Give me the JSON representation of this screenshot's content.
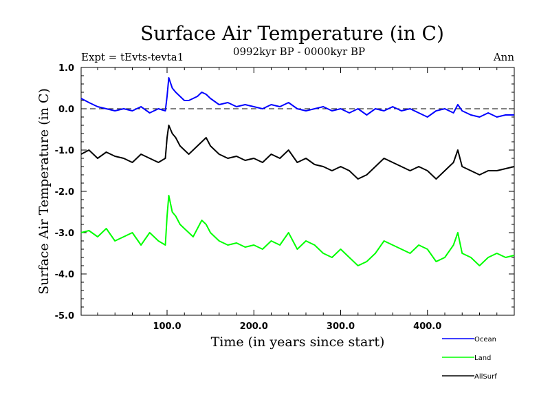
{
  "chart_data": {
    "type": "line",
    "title": "Surface Air Temperature (in C)",
    "subtitle_left": "Expt = tEvts-tevta1",
    "subtitle_center": "0992kyr BP - 0000kyr BP",
    "subtitle_right": "Ann",
    "xlabel": "Time (in years since start)",
    "ylabel": "Surface Air Temperature (in C)",
    "xlim": [
      1,
      500
    ],
    "ylim": [
      -5.0,
      1.0
    ],
    "xticks": [
      100,
      200,
      300,
      400
    ],
    "xtick_labels": [
      "100.0",
      "200.0",
      "300.0",
      "400.0"
    ],
    "yticks": [
      1.0,
      0.0,
      -1.0,
      -2.0,
      -3.0,
      -4.0,
      -5.0
    ],
    "ytick_labels": [
      "1.0",
      "0.0",
      "-1.0",
      "-2.0",
      "-3.0",
      "-4.0",
      "-5.0"
    ],
    "reference_line": 0.0,
    "legend_position": "bottom-right, outside plot",
    "series": [
      {
        "name": "Ocean",
        "color": "#0000ff",
        "values": [
          [
            1,
            0.25
          ],
          [
            10,
            0.15
          ],
          [
            20,
            0.05
          ],
          [
            30,
            0.0
          ],
          [
            40,
            -0.05
          ],
          [
            50,
            0.0
          ],
          [
            60,
            -0.05
          ],
          [
            70,
            0.05
          ],
          [
            80,
            -0.1
          ],
          [
            90,
            0.0
          ],
          [
            98,
            -0.05
          ],
          [
            100,
            0.3
          ],
          [
            102,
            0.75
          ],
          [
            106,
            0.5
          ],
          [
            110,
            0.4
          ],
          [
            115,
            0.3
          ],
          [
            120,
            0.2
          ],
          [
            125,
            0.2
          ],
          [
            130,
            0.25
          ],
          [
            135,
            0.3
          ],
          [
            140,
            0.4
          ],
          [
            145,
            0.35
          ],
          [
            150,
            0.25
          ],
          [
            160,
            0.1
          ],
          [
            170,
            0.15
          ],
          [
            180,
            0.05
          ],
          [
            190,
            0.1
          ],
          [
            200,
            0.05
          ],
          [
            210,
            0.0
          ],
          [
            220,
            0.1
          ],
          [
            230,
            0.05
          ],
          [
            240,
            0.15
          ],
          [
            250,
            0.0
          ],
          [
            260,
            -0.05
          ],
          [
            270,
            0.0
          ],
          [
            280,
            0.05
          ],
          [
            290,
            -0.05
          ],
          [
            300,
            0.0
          ],
          [
            310,
            -0.1
          ],
          [
            320,
            0.0
          ],
          [
            330,
            -0.15
          ],
          [
            340,
            0.0
          ],
          [
            350,
            -0.05
          ],
          [
            360,
            0.05
          ],
          [
            370,
            -0.05
          ],
          [
            380,
            0.0
          ],
          [
            390,
            -0.1
          ],
          [
            400,
            -0.2
          ],
          [
            410,
            -0.05
          ],
          [
            420,
            0.0
          ],
          [
            430,
            -0.1
          ],
          [
            435,
            0.1
          ],
          [
            440,
            -0.05
          ],
          [
            450,
            -0.15
          ],
          [
            460,
            -0.2
          ],
          [
            470,
            -0.1
          ],
          [
            480,
            -0.2
          ],
          [
            490,
            -0.15
          ],
          [
            500,
            -0.15
          ]
        ]
      },
      {
        "name": "Land",
        "color": "#00ff00",
        "values": [
          [
            1,
            -3.0
          ],
          [
            10,
            -2.95
          ],
          [
            20,
            -3.1
          ],
          [
            30,
            -2.9
          ],
          [
            40,
            -3.2
          ],
          [
            50,
            -3.1
          ],
          [
            60,
            -3.0
          ],
          [
            70,
            -3.3
          ],
          [
            80,
            -3.0
          ],
          [
            90,
            -3.2
          ],
          [
            98,
            -3.3
          ],
          [
            100,
            -2.6
          ],
          [
            102,
            -2.1
          ],
          [
            106,
            -2.5
          ],
          [
            110,
            -2.6
          ],
          [
            115,
            -2.8
          ],
          [
            120,
            -2.9
          ],
          [
            125,
            -3.0
          ],
          [
            130,
            -3.1
          ],
          [
            135,
            -2.9
          ],
          [
            140,
            -2.7
          ],
          [
            145,
            -2.8
          ],
          [
            150,
            -3.0
          ],
          [
            160,
            -3.2
          ],
          [
            170,
            -3.3
          ],
          [
            180,
            -3.25
          ],
          [
            190,
            -3.35
          ],
          [
            200,
            -3.3
          ],
          [
            210,
            -3.4
          ],
          [
            220,
            -3.2
          ],
          [
            230,
            -3.3
          ],
          [
            240,
            -3.0
          ],
          [
            250,
            -3.4
          ],
          [
            260,
            -3.2
          ],
          [
            270,
            -3.3
          ],
          [
            280,
            -3.5
          ],
          [
            290,
            -3.6
          ],
          [
            300,
            -3.4
          ],
          [
            310,
            -3.6
          ],
          [
            320,
            -3.8
          ],
          [
            330,
            -3.7
          ],
          [
            340,
            -3.5
          ],
          [
            350,
            -3.2
          ],
          [
            360,
            -3.3
          ],
          [
            370,
            -3.4
          ],
          [
            380,
            -3.5
          ],
          [
            390,
            -3.3
          ],
          [
            400,
            -3.4
          ],
          [
            410,
            -3.7
          ],
          [
            420,
            -3.6
          ],
          [
            430,
            -3.3
          ],
          [
            435,
            -3.0
          ],
          [
            440,
            -3.5
          ],
          [
            450,
            -3.6
          ],
          [
            460,
            -3.8
          ],
          [
            470,
            -3.6
          ],
          [
            480,
            -3.5
          ],
          [
            490,
            -3.6
          ],
          [
            500,
            -3.55
          ]
        ]
      },
      {
        "name": "AllSurf",
        "color": "#000000",
        "values": [
          [
            1,
            -1.1
          ],
          [
            10,
            -1.0
          ],
          [
            20,
            -1.2
          ],
          [
            30,
            -1.05
          ],
          [
            40,
            -1.15
          ],
          [
            50,
            -1.2
          ],
          [
            60,
            -1.3
          ],
          [
            70,
            -1.1
          ],
          [
            80,
            -1.2
          ],
          [
            90,
            -1.3
          ],
          [
            98,
            -1.2
          ],
          [
            100,
            -0.7
          ],
          [
            102,
            -0.4
          ],
          [
            106,
            -0.6
          ],
          [
            110,
            -0.7
          ],
          [
            115,
            -0.9
          ],
          [
            120,
            -1.0
          ],
          [
            125,
            -1.1
          ],
          [
            130,
            -1.0
          ],
          [
            135,
            -0.9
          ],
          [
            140,
            -0.8
          ],
          [
            145,
            -0.7
          ],
          [
            150,
            -0.9
          ],
          [
            160,
            -1.1
          ],
          [
            170,
            -1.2
          ],
          [
            180,
            -1.15
          ],
          [
            190,
            -1.25
          ],
          [
            200,
            -1.2
          ],
          [
            210,
            -1.3
          ],
          [
            220,
            -1.1
          ],
          [
            230,
            -1.2
          ],
          [
            240,
            -1.0
          ],
          [
            250,
            -1.3
          ],
          [
            260,
            -1.2
          ],
          [
            270,
            -1.35
          ],
          [
            280,
            -1.4
          ],
          [
            290,
            -1.5
          ],
          [
            300,
            -1.4
          ],
          [
            310,
            -1.5
          ],
          [
            320,
            -1.7
          ],
          [
            330,
            -1.6
          ],
          [
            340,
            -1.4
          ],
          [
            350,
            -1.2
          ],
          [
            360,
            -1.3
          ],
          [
            370,
            -1.4
          ],
          [
            380,
            -1.5
          ],
          [
            390,
            -1.4
          ],
          [
            400,
            -1.5
          ],
          [
            410,
            -1.7
          ],
          [
            420,
            -1.5
          ],
          [
            430,
            -1.3
          ],
          [
            435,
            -1.0
          ],
          [
            440,
            -1.4
          ],
          [
            450,
            -1.5
          ],
          [
            460,
            -1.6
          ],
          [
            470,
            -1.5
          ],
          [
            480,
            -1.5
          ],
          [
            490,
            -1.45
          ],
          [
            500,
            -1.4
          ]
        ]
      }
    ]
  }
}
